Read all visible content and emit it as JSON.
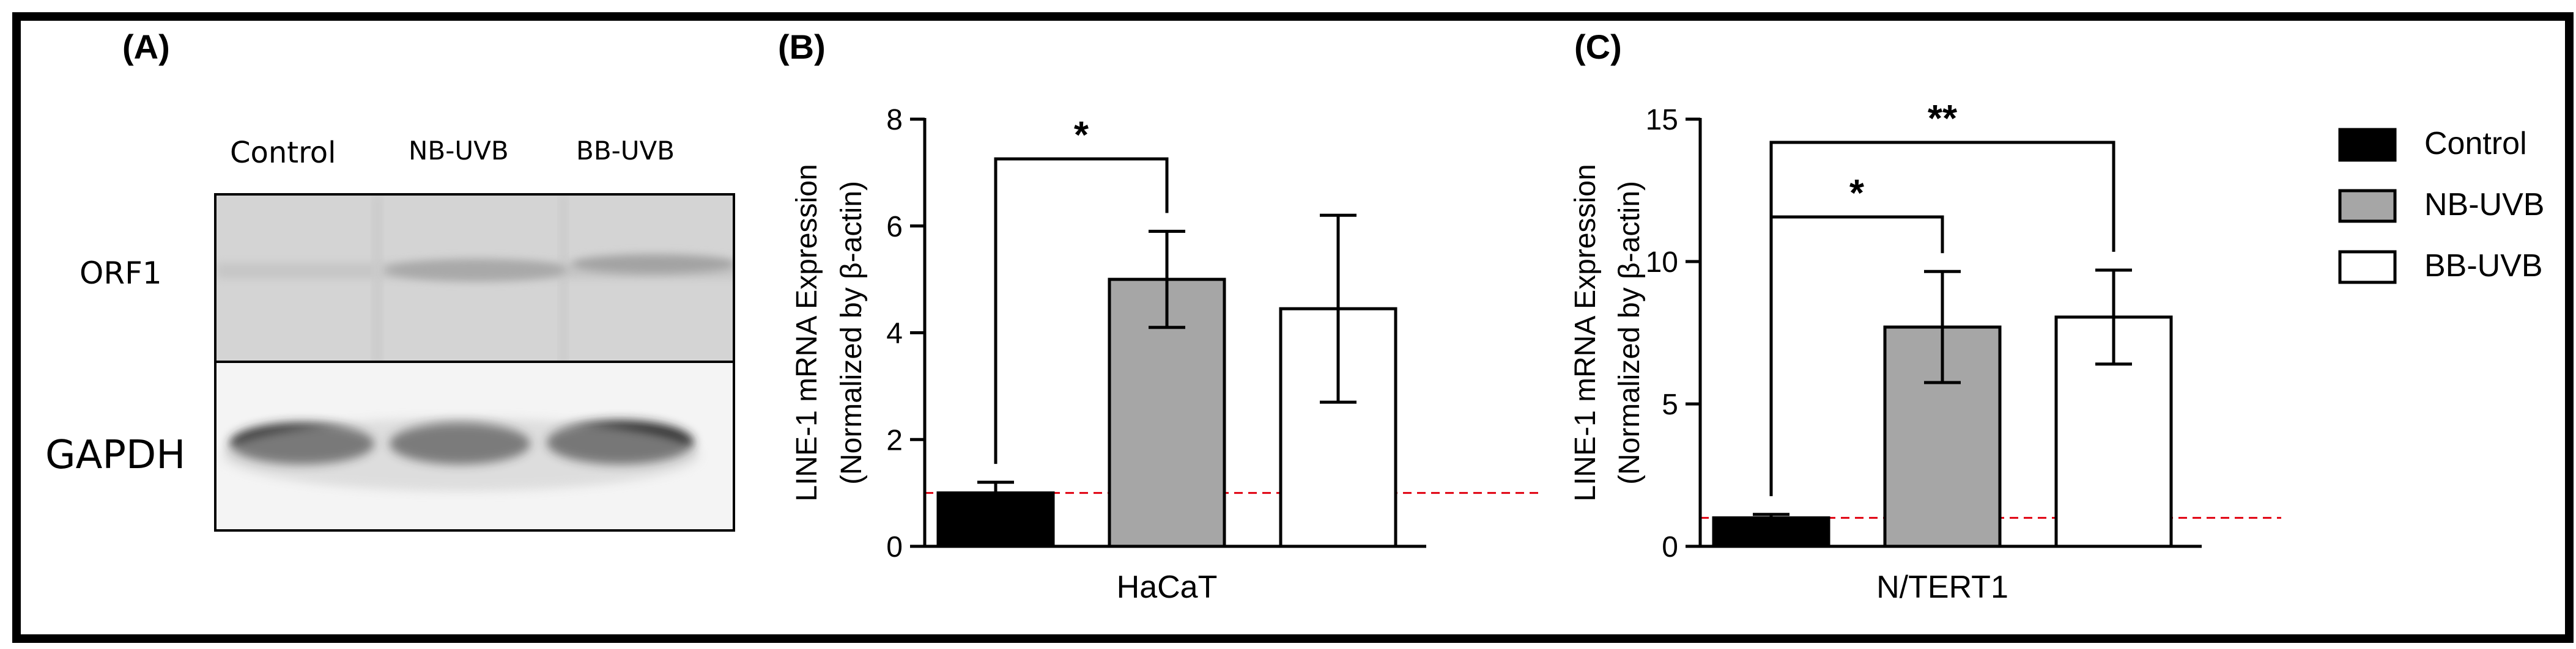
{
  "panels": {
    "a": "(A)",
    "b": "(B)",
    "c": "(C)"
  },
  "blot": {
    "lanes": [
      "Control",
      "NB-UVB",
      "BB-UVB"
    ],
    "row_labels": [
      "ORF1",
      "GAPDH"
    ]
  },
  "chart_data": [
    {
      "type": "bar",
      "panel": "(B)",
      "cell_line": "HaCaT",
      "ylabel_line1": "LINE-1 mRNA Expression",
      "ylabel_line2": "(Normalized by β-actin)",
      "xlabel": "HaCaT",
      "categories": [
        "Control",
        "NB-UVB",
        "BB-UVB"
      ],
      "values": [
        1.0,
        5.0,
        4.45
      ],
      "errors": [
        0.2,
        0.9,
        1.75
      ],
      "ylim": [
        0,
        8
      ],
      "yticks": [
        0,
        2,
        4,
        6,
        8
      ],
      "ytick_labels": [
        "0",
        "2",
        "4",
        "6",
        "8"
      ],
      "reference_line": 1,
      "significance": [
        {
          "from": "Control",
          "to": "NB-UVB",
          "label": "*"
        }
      ]
    },
    {
      "type": "bar",
      "panel": "(C)",
      "cell_line": "N/TERT1",
      "ylabel_line1": "LINE-1 mRNA Expression",
      "ylabel_line2": "(Normalized by β-actin)",
      "xlabel": "N/TERT1",
      "categories": [
        "Control",
        "NB-UVB",
        "BB-UVB"
      ],
      "values": [
        1.0,
        7.7,
        8.05
      ],
      "errors": [
        0.12,
        1.95,
        1.65
      ],
      "ylim": [
        0,
        15
      ],
      "yticks": [
        0,
        5,
        10,
        15
      ],
      "ytick_labels": [
        "0",
        "5",
        "10",
        "15"
      ],
      "reference_line": 1,
      "significance": [
        {
          "from": "Control",
          "to": "NB-UVB",
          "label": "*"
        },
        {
          "from": "Control",
          "to": "BB-UVB",
          "label": "**"
        }
      ]
    }
  ],
  "legend": {
    "entries": [
      {
        "label": "Control",
        "color": "#000000"
      },
      {
        "label": "NB-UVB",
        "color": "#a6a6a6"
      },
      {
        "label": "BB-UVB",
        "color": "#ffffff"
      }
    ]
  },
  "colors": {
    "reference_line": "#e0000f",
    "axis": "#000000"
  }
}
